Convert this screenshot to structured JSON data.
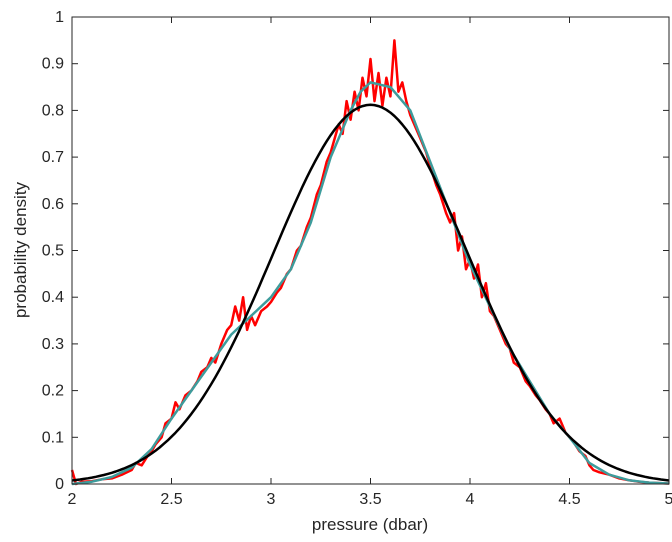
{
  "chart_data": {
    "type": "line",
    "title": "",
    "xlabel": "pressure (dbar)",
    "ylabel": "probability density",
    "xlim": [
      2,
      5
    ],
    "ylim": [
      0,
      1
    ],
    "x_ticks": [
      2,
      2.5,
      3,
      3.5,
      4,
      4.5,
      5
    ],
    "x_tick_labels": [
      "2",
      "2.5",
      "3",
      "3.5",
      "4",
      "4.5",
      "5"
    ],
    "y_ticks": [
      0,
      0.1,
      0.2,
      0.3,
      0.4,
      0.5,
      0.6,
      0.7,
      0.8,
      0.9,
      1
    ],
    "y_tick_labels": [
      "0",
      "0.1",
      "0.2",
      "0.3",
      "0.4",
      "0.5",
      "0.6",
      "0.7",
      "0.8",
      "0.9",
      "1"
    ],
    "grid": false,
    "legend": "none",
    "series": [
      {
        "color": "#ff0000",
        "style": "noisy histogram density",
        "points": [
          [
            2.0,
            0.03
          ],
          [
            2.02,
            0.0
          ],
          [
            2.05,
            0.005
          ],
          [
            2.1,
            0.006
          ],
          [
            2.15,
            0.01
          ],
          [
            2.2,
            0.012
          ],
          [
            2.25,
            0.02
          ],
          [
            2.3,
            0.03
          ],
          [
            2.32,
            0.045
          ],
          [
            2.35,
            0.04
          ],
          [
            2.38,
            0.06
          ],
          [
            2.4,
            0.07
          ],
          [
            2.42,
            0.085
          ],
          [
            2.45,
            0.1
          ],
          [
            2.47,
            0.13
          ],
          [
            2.5,
            0.14
          ],
          [
            2.52,
            0.175
          ],
          [
            2.54,
            0.16
          ],
          [
            2.57,
            0.19
          ],
          [
            2.6,
            0.2
          ],
          [
            2.63,
            0.22
          ],
          [
            2.65,
            0.24
          ],
          [
            2.68,
            0.25
          ],
          [
            2.7,
            0.27
          ],
          [
            2.72,
            0.26
          ],
          [
            2.75,
            0.3
          ],
          [
            2.78,
            0.33
          ],
          [
            2.8,
            0.34
          ],
          [
            2.82,
            0.38
          ],
          [
            2.84,
            0.35
          ],
          [
            2.86,
            0.4
          ],
          [
            2.88,
            0.33
          ],
          [
            2.9,
            0.36
          ],
          [
            2.92,
            0.34
          ],
          [
            2.95,
            0.37
          ],
          [
            2.98,
            0.38
          ],
          [
            3.0,
            0.39
          ],
          [
            3.03,
            0.41
          ],
          [
            3.05,
            0.42
          ],
          [
            3.08,
            0.45
          ],
          [
            3.1,
            0.46
          ],
          [
            3.13,
            0.5
          ],
          [
            3.15,
            0.51
          ],
          [
            3.18,
            0.55
          ],
          [
            3.2,
            0.57
          ],
          [
            3.23,
            0.62
          ],
          [
            3.25,
            0.64
          ],
          [
            3.28,
            0.69
          ],
          [
            3.3,
            0.71
          ],
          [
            3.32,
            0.74
          ],
          [
            3.34,
            0.77
          ],
          [
            3.36,
            0.75
          ],
          [
            3.38,
            0.82
          ],
          [
            3.4,
            0.78
          ],
          [
            3.42,
            0.84
          ],
          [
            3.44,
            0.8
          ],
          [
            3.46,
            0.87
          ],
          [
            3.48,
            0.83
          ],
          [
            3.5,
            0.91
          ],
          [
            3.52,
            0.82
          ],
          [
            3.54,
            0.88
          ],
          [
            3.56,
            0.81
          ],
          [
            3.58,
            0.87
          ],
          [
            3.6,
            0.83
          ],
          [
            3.62,
            0.95
          ],
          [
            3.64,
            0.84
          ],
          [
            3.66,
            0.86
          ],
          [
            3.68,
            0.82
          ],
          [
            3.7,
            0.79
          ],
          [
            3.72,
            0.77
          ],
          [
            3.75,
            0.74
          ],
          [
            3.78,
            0.71
          ],
          [
            3.8,
            0.68
          ],
          [
            3.83,
            0.64
          ],
          [
            3.85,
            0.62
          ],
          [
            3.88,
            0.58
          ],
          [
            3.9,
            0.56
          ],
          [
            3.92,
            0.58
          ],
          [
            3.94,
            0.5
          ],
          [
            3.96,
            0.53
          ],
          [
            3.98,
            0.46
          ],
          [
            4.0,
            0.48
          ],
          [
            4.02,
            0.44
          ],
          [
            4.04,
            0.47
          ],
          [
            4.06,
            0.4
          ],
          [
            4.08,
            0.43
          ],
          [
            4.1,
            0.37
          ],
          [
            4.12,
            0.36
          ],
          [
            4.15,
            0.33
          ],
          [
            4.18,
            0.3
          ],
          [
            4.2,
            0.29
          ],
          [
            4.22,
            0.26
          ],
          [
            4.25,
            0.25
          ],
          [
            4.28,
            0.22
          ],
          [
            4.3,
            0.21
          ],
          [
            4.33,
            0.19
          ],
          [
            4.35,
            0.18
          ],
          [
            4.38,
            0.16
          ],
          [
            4.4,
            0.15
          ],
          [
            4.42,
            0.13
          ],
          [
            4.45,
            0.14
          ],
          [
            4.48,
            0.11
          ],
          [
            4.5,
            0.1
          ],
          [
            4.52,
            0.09
          ],
          [
            4.55,
            0.07
          ],
          [
            4.58,
            0.06
          ],
          [
            4.6,
            0.04
          ],
          [
            4.62,
            0.03
          ],
          [
            4.65,
            0.025
          ],
          [
            4.7,
            0.02
          ],
          [
            4.75,
            0.012
          ],
          [
            4.8,
            0.008
          ],
          [
            4.85,
            0.005
          ],
          [
            4.9,
            0.003
          ],
          [
            4.95,
            0.002
          ],
          [
            5.0,
            0.001
          ]
        ]
      },
      {
        "color": "#3d9c9c",
        "style": "smoothed density",
        "points": [
          [
            2.0,
            0.0
          ],
          [
            2.1,
            0.005
          ],
          [
            2.2,
            0.015
          ],
          [
            2.3,
            0.035
          ],
          [
            2.4,
            0.075
          ],
          [
            2.5,
            0.14
          ],
          [
            2.6,
            0.2
          ],
          [
            2.7,
            0.26
          ],
          [
            2.8,
            0.32
          ],
          [
            2.9,
            0.36
          ],
          [
            3.0,
            0.4
          ],
          [
            3.1,
            0.46
          ],
          [
            3.2,
            0.56
          ],
          [
            3.3,
            0.7
          ],
          [
            3.4,
            0.8
          ],
          [
            3.45,
            0.84
          ],
          [
            3.5,
            0.86
          ],
          [
            3.6,
            0.85
          ],
          [
            3.7,
            0.8
          ],
          [
            3.8,
            0.69
          ],
          [
            3.9,
            0.58
          ],
          [
            4.0,
            0.47
          ],
          [
            4.1,
            0.38
          ],
          [
            4.2,
            0.29
          ],
          [
            4.3,
            0.22
          ],
          [
            4.4,
            0.15
          ],
          [
            4.5,
            0.1
          ],
          [
            4.6,
            0.045
          ],
          [
            4.7,
            0.02
          ],
          [
            4.8,
            0.008
          ],
          [
            4.9,
            0.003
          ],
          [
            5.0,
            0.001
          ]
        ]
      },
      {
        "color": "#000000",
        "style": "normal fit",
        "mean": 3.5,
        "sd": 0.49,
        "peak": 0.812
      }
    ]
  }
}
